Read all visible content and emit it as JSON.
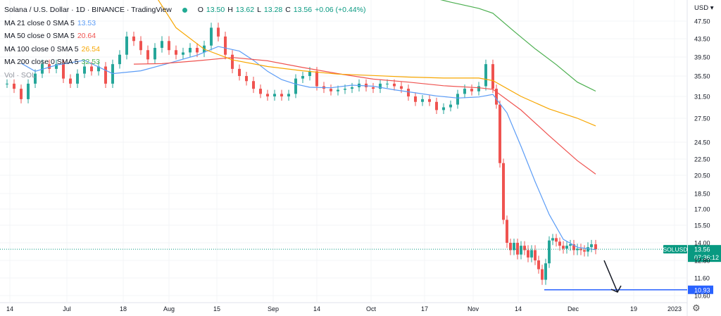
{
  "header": {
    "symbol_title": "Solana / U.S. Dollar · 1D · BINANCE · TradingView",
    "ohlc": [
      {
        "label": "O",
        "value": "13.50"
      },
      {
        "label": "H",
        "value": "13.62"
      },
      {
        "label": "L",
        "value": "13.28"
      },
      {
        "label": "C",
        "value": "13.56"
      },
      {
        "label": "",
        "value": "+0.06 (+0.44%)"
      }
    ],
    "currency": "USD",
    "volume_label": "Vol · SOL"
  },
  "colors": {
    "up": "#089981",
    "down": "#f23645",
    "candle_body_up": "#26a69a",
    "candle_body_down": "#ef5350",
    "ma21": "#5b9cf6",
    "ma50": "#ef5350",
    "ma100": "#f7a600",
    "ma200": "#4caf50",
    "price_badge": "#089981",
    "support_line": "#2962ff"
  },
  "chart_data": {
    "type": "candlestick",
    "ylim": [
      10.6,
      48.5
    ],
    "y_ticks": [
      "47.50",
      "43.50",
      "39.50",
      "35.50",
      "31.50",
      "27.50",
      "24.50",
      "22.50",
      "20.50",
      "18.50",
      "17.00",
      "15.50",
      "14.00",
      "12.80",
      "11.60",
      "10.60"
    ],
    "x_ticks": [
      "14",
      "Jul",
      "18",
      "Aug",
      "15",
      "Sep",
      "14",
      "Oct",
      "17",
      "Nov",
      "14",
      "Dec",
      "19",
      "2023"
    ],
    "moving_averages": [
      {
        "name": "MA 21 close 0 SMA 5",
        "value": "13.53",
        "color": "#5b9cf6",
        "points": [
          [
            30,
            38.2
          ],
          [
            50,
            36.5
          ],
          [
            80,
            37.8
          ],
          [
            120,
            38.8
          ],
          [
            160,
            36.0
          ],
          [
            200,
            36.6
          ],
          [
            240,
            38.2
          ],
          [
            280,
            39.9
          ],
          [
            310,
            41.8
          ],
          [
            340,
            40.8
          ],
          [
            360,
            38.8
          ],
          [
            380,
            36.5
          ],
          [
            400,
            34.8
          ],
          [
            420,
            33.9
          ],
          [
            440,
            33.3
          ],
          [
            470,
            33.2
          ],
          [
            500,
            33.7
          ],
          [
            530,
            33.5
          ],
          [
            560,
            32.8
          ],
          [
            590,
            32.2
          ],
          [
            620,
            31.6
          ],
          [
            650,
            31.2
          ],
          [
            680,
            31.4
          ],
          [
            700,
            31.9
          ],
          [
            720,
            28.5
          ],
          [
            740,
            24.0
          ],
          [
            760,
            19.8
          ],
          [
            780,
            16.5
          ],
          [
            800,
            14.3
          ],
          [
            820,
            13.7
          ],
          [
            846,
            13.53
          ]
        ]
      },
      {
        "name": "MA 50 close 0 SMA 5",
        "value": "20.64",
        "color": "#ef5350",
        "points": [
          [
            190,
            38.0
          ],
          [
            230,
            38.1
          ],
          [
            280,
            38.7
          ],
          [
            330,
            39.4
          ],
          [
            380,
            38.7
          ],
          [
            430,
            37.3
          ],
          [
            480,
            36.0
          ],
          [
            530,
            34.9
          ],
          [
            580,
            34.3
          ],
          [
            630,
            33.6
          ],
          [
            680,
            33.2
          ],
          [
            700,
            32.9
          ],
          [
            740,
            29.0
          ],
          [
            780,
            25.3
          ],
          [
            820,
            22.3
          ],
          [
            846,
            20.64
          ]
        ]
      },
      {
        "name": "MA 100 close 0 SMA 5",
        "value": "26.54",
        "color": "#f7a600",
        "points": [
          [
            210,
            56.0
          ],
          [
            250,
            46.0
          ],
          [
            290,
            41.2
          ],
          [
            330,
            38.9
          ],
          [
            380,
            37.5
          ],
          [
            430,
            36.6
          ],
          [
            480,
            35.9
          ],
          [
            530,
            35.6
          ],
          [
            580,
            35.3
          ],
          [
            630,
            35.1
          ],
          [
            680,
            35.1
          ],
          [
            700,
            34.6
          ],
          [
            740,
            31.5
          ],
          [
            780,
            29.2
          ],
          [
            820,
            27.5
          ],
          [
            846,
            26.54
          ]
        ]
      },
      {
        "name": "MA 200 close 0 SMA 5",
        "value": "32.53",
        "color": "#4caf50",
        "points": [
          [
            565,
            55.0
          ],
          [
            600,
            53.4
          ],
          [
            640,
            51.8
          ],
          [
            680,
            50.4
          ],
          [
            700,
            49.3
          ],
          [
            730,
            45.2
          ],
          [
            760,
            41.3
          ],
          [
            790,
            37.9
          ],
          [
            820,
            34.3
          ],
          [
            846,
            32.53
          ]
        ]
      }
    ],
    "last_price": {
      "symbol": "SOLUSD",
      "price": "13.56",
      "countdown": "07:36:12"
    },
    "support_level": {
      "value": "10.93",
      "from_x": 773
    },
    "annotation": {
      "type": "arrow",
      "from_x": 858,
      "from_value": 12.8,
      "to_x": 877,
      "to_value": 10.6
    }
  }
}
